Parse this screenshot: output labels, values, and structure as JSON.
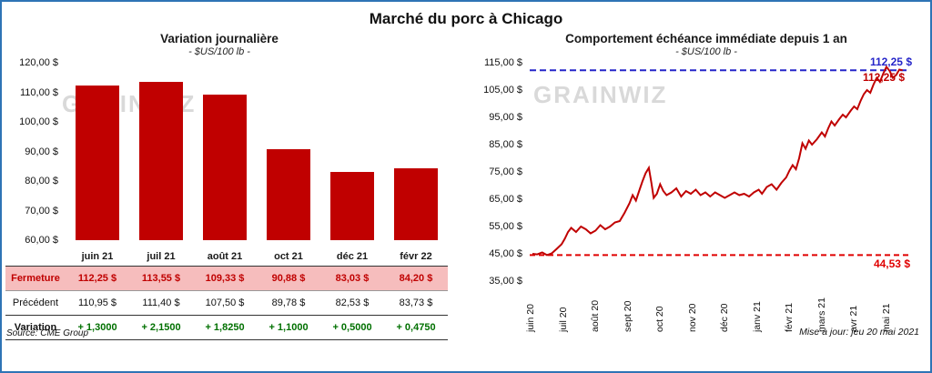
{
  "title": "Marché du porc à Chicago",
  "watermark": "GRAINWIZ",
  "left_chart": {
    "title": "Variation journalière",
    "subtitle": "- $US/100 lb -"
  },
  "right_chart": {
    "title": "Comportement échéance immédiate depuis 1 an",
    "subtitle": "- $US/100 lb -",
    "upper_label": "112,25 $",
    "last_label": "112,25 $",
    "lower_label": "44,53 $"
  },
  "footer": {
    "source": "Source: CME Group",
    "updated": "Mise à jour: jeu 20 mai 2021"
  },
  "chart_data": [
    {
      "type": "bar",
      "title": "Variation journalière",
      "unit": "$US/100 lb",
      "categories": [
        "juin 21",
        "juil 21",
        "août 21",
        "oct 21",
        "déc 21",
        "févr 22"
      ],
      "values": [
        112.25,
        113.55,
        109.33,
        90.88,
        83.03,
        84.2
      ],
      "ylim": [
        60,
        120
      ],
      "ytick_step": 10,
      "bar_color": "#C00000",
      "table": {
        "rows": [
          {
            "label": "Fermeture",
            "values": [
              "112,25  $",
              "113,55  $",
              "109,33  $",
              "90,88  $",
              "83,03  $",
              "84,20  $"
            ]
          },
          {
            "label": "Précédent",
            "values": [
              "110,95  $",
              "111,40  $",
              "107,50  $",
              "89,78  $",
              "82,53  $",
              "83,73  $"
            ]
          },
          {
            "label": "Variation",
            "values": [
              "+ 1,3000",
              "+ 2,1500",
              "+ 1,8250",
              "+ 1,1000",
              "+ 0,5000",
              "+ 0,4750"
            ]
          }
        ]
      }
    },
    {
      "type": "line",
      "title": "Comportement échéance immédiate depuis 1 an",
      "unit": "$US/100 lb",
      "x_labels": [
        "juin 20",
        "juil 20",
        "août 20",
        "sept 20",
        "oct 20",
        "nov 20",
        "déc 20",
        "janv 21",
        "févr 21",
        "mars 21",
        "avr 21",
        "mai 21"
      ],
      "ylim": [
        35,
        115
      ],
      "ytick_step": 10,
      "line_color": "#C00000",
      "ref_high": {
        "value": 112.25,
        "label": "112,25 $",
        "color": "#2626C9"
      },
      "ref_low": {
        "value": 44.53,
        "label": "44,53 $",
        "color": "#E00000"
      },
      "points": [
        [
          0,
          45
        ],
        [
          0.15,
          44.8
        ],
        [
          0.3,
          45.5
        ],
        [
          0.45,
          44.53
        ],
        [
          0.6,
          45.2
        ],
        [
          0.75,
          46.8
        ],
        [
          0.9,
          48.5
        ],
        [
          1.0,
          50.5
        ],
        [
          1.1,
          53
        ],
        [
          1.2,
          54.5
        ],
        [
          1.35,
          53
        ],
        [
          1.5,
          55
        ],
        [
          1.65,
          54
        ],
        [
          1.8,
          52.5
        ],
        [
          1.95,
          53.5
        ],
        [
          2.1,
          55.5
        ],
        [
          2.25,
          54
        ],
        [
          2.4,
          55
        ],
        [
          2.55,
          56.5
        ],
        [
          2.7,
          57
        ],
        [
          2.85,
          60
        ],
        [
          3.0,
          63.5
        ],
        [
          3.1,
          66.5
        ],
        [
          3.2,
          64.5
        ],
        [
          3.3,
          68
        ],
        [
          3.4,
          71.5
        ],
        [
          3.5,
          74.5
        ],
        [
          3.6,
          76.5
        ],
        [
          3.68,
          71
        ],
        [
          3.75,
          65.5
        ],
        [
          3.85,
          67
        ],
        [
          3.95,
          70.5
        ],
        [
          4.05,
          68
        ],
        [
          4.15,
          66.5
        ],
        [
          4.3,
          67.5
        ],
        [
          4.45,
          69
        ],
        [
          4.6,
          66
        ],
        [
          4.75,
          68
        ],
        [
          4.9,
          67
        ],
        [
          5.05,
          68.5
        ],
        [
          5.2,
          66.5
        ],
        [
          5.35,
          67.5
        ],
        [
          5.5,
          66
        ],
        [
          5.65,
          67.5
        ],
        [
          5.8,
          66.5
        ],
        [
          5.95,
          65.5
        ],
        [
          6.1,
          66.5
        ],
        [
          6.25,
          67.5
        ],
        [
          6.4,
          66.5
        ],
        [
          6.55,
          67
        ],
        [
          6.7,
          66
        ],
        [
          6.85,
          67.5
        ],
        [
          7.0,
          68.5
        ],
        [
          7.1,
          67
        ],
        [
          7.25,
          69.5
        ],
        [
          7.4,
          70.5
        ],
        [
          7.55,
          68.5
        ],
        [
          7.7,
          71
        ],
        [
          7.85,
          73
        ],
        [
          7.95,
          75.5
        ],
        [
          8.05,
          77.5
        ],
        [
          8.15,
          76
        ],
        [
          8.25,
          80
        ],
        [
          8.35,
          85.5
        ],
        [
          8.45,
          83.5
        ],
        [
          8.55,
          86.5
        ],
        [
          8.65,
          85
        ],
        [
          8.8,
          87
        ],
        [
          8.95,
          89.5
        ],
        [
          9.05,
          88
        ],
        [
          9.15,
          91
        ],
        [
          9.25,
          93.5
        ],
        [
          9.35,
          92
        ],
        [
          9.5,
          94.5
        ],
        [
          9.6,
          96
        ],
        [
          9.7,
          95
        ],
        [
          9.85,
          97.5
        ],
        [
          9.95,
          99
        ],
        [
          10.05,
          98
        ],
        [
          10.15,
          101
        ],
        [
          10.25,
          103.5
        ],
        [
          10.35,
          105
        ],
        [
          10.45,
          104
        ],
        [
          10.55,
          107
        ],
        [
          10.65,
          109.5
        ],
        [
          10.75,
          108
        ],
        [
          10.85,
          111
        ],
        [
          10.95,
          113.5
        ],
        [
          11.05,
          112
        ],
        [
          11.15,
          109.5
        ],
        [
          11.25,
          110.5
        ],
        [
          11.35,
          112.5
        ],
        [
          11.45,
          112.25
        ]
      ]
    }
  ]
}
